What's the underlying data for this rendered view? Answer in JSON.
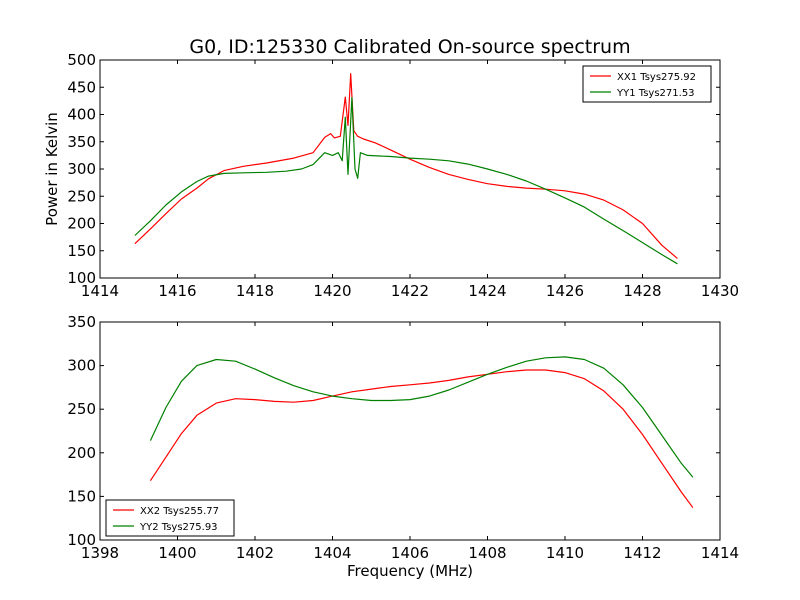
{
  "title": "G0, ID:125330 Calibrated On-source spectrum",
  "colors": {
    "xx": "#ff0000",
    "yy": "#008000"
  },
  "chart_data": [
    {
      "type": "line",
      "xlabel": "",
      "ylabel": "Power in Kelvin",
      "xlim": [
        1414,
        1430
      ],
      "ylim": [
        100,
        500
      ],
      "xticks": [
        1414,
        1416,
        1418,
        1420,
        1422,
        1424,
        1426,
        1428,
        1430
      ],
      "yticks": [
        100,
        150,
        200,
        250,
        300,
        350,
        400,
        450,
        500
      ],
      "legend_position": "top-right",
      "series": [
        {
          "name": "XX1 Tsys275.92",
          "color": "#ff0000",
          "points": [
            [
              1414.9,
              163
            ],
            [
              1415.3,
              190
            ],
            [
              1415.7,
              218
            ],
            [
              1416.1,
              245
            ],
            [
              1416.5,
              265
            ],
            [
              1416.8,
              282
            ],
            [
              1417.2,
              297
            ],
            [
              1417.7,
              305
            ],
            [
              1418.3,
              311
            ],
            [
              1419.0,
              320
            ],
            [
              1419.5,
              330
            ],
            [
              1419.8,
              358
            ],
            [
              1419.95,
              365
            ],
            [
              1420.05,
              357
            ],
            [
              1420.2,
              360
            ],
            [
              1420.33,
              432
            ],
            [
              1420.4,
              380
            ],
            [
              1420.47,
              475
            ],
            [
              1420.55,
              370
            ],
            [
              1420.65,
              360
            ],
            [
              1420.8,
              355
            ],
            [
              1421.1,
              348
            ],
            [
              1421.5,
              335
            ],
            [
              1422.0,
              318
            ],
            [
              1422.5,
              303
            ],
            [
              1423.0,
              290
            ],
            [
              1423.5,
              281
            ],
            [
              1424.0,
              273
            ],
            [
              1424.5,
              268
            ],
            [
              1425.0,
              265
            ],
            [
              1425.5,
              263
            ],
            [
              1426.0,
              260
            ],
            [
              1426.5,
              254
            ],
            [
              1427.0,
              243
            ],
            [
              1427.5,
              225
            ],
            [
              1428.0,
              200
            ],
            [
              1428.5,
              160
            ],
            [
              1428.9,
              136
            ]
          ]
        },
        {
          "name": "YY1 Tsys271.53",
          "color": "#008000",
          "points": [
            [
              1414.9,
              178
            ],
            [
              1415.3,
              205
            ],
            [
              1415.7,
              234
            ],
            [
              1416.1,
              258
            ],
            [
              1416.5,
              277
            ],
            [
              1416.8,
              287
            ],
            [
              1417.2,
              292
            ],
            [
              1417.7,
              293
            ],
            [
              1418.3,
              294
            ],
            [
              1418.8,
              296
            ],
            [
              1419.2,
              300
            ],
            [
              1419.5,
              308
            ],
            [
              1419.8,
              330
            ],
            [
              1420.0,
              325
            ],
            [
              1420.15,
              330
            ],
            [
              1420.25,
              315
            ],
            [
              1420.33,
              395
            ],
            [
              1420.4,
              290
            ],
            [
              1420.5,
              431
            ],
            [
              1420.58,
              300
            ],
            [
              1420.65,
              283
            ],
            [
              1420.72,
              330
            ],
            [
              1420.9,
              325
            ],
            [
              1421.5,
              323
            ],
            [
              1422.0,
              320
            ],
            [
              1422.5,
              318
            ],
            [
              1423.0,
              315
            ],
            [
              1423.5,
              309
            ],
            [
              1424.0,
              300
            ],
            [
              1424.5,
              290
            ],
            [
              1425.0,
              278
            ],
            [
              1425.5,
              263
            ],
            [
              1426.0,
              247
            ],
            [
              1426.5,
              230
            ],
            [
              1427.0,
              208
            ],
            [
              1427.5,
              187
            ],
            [
              1428.0,
              165
            ],
            [
              1428.5,
              143
            ],
            [
              1428.9,
              126
            ]
          ]
        }
      ]
    },
    {
      "type": "line",
      "xlabel": "Frequency (MHz)",
      "ylabel": "",
      "xlim": [
        1398,
        1414
      ],
      "ylim": [
        100,
        350
      ],
      "xticks": [
        1398,
        1400,
        1402,
        1404,
        1406,
        1408,
        1410,
        1412,
        1414
      ],
      "yticks": [
        100,
        150,
        200,
        250,
        300,
        350
      ],
      "legend_position": "bottom-left",
      "series": [
        {
          "name": "XX2 Tsys255.77",
          "color": "#ff0000",
          "points": [
            [
              1399.3,
              168
            ],
            [
              1399.7,
              195
            ],
            [
              1400.1,
              222
            ],
            [
              1400.5,
              243
            ],
            [
              1401.0,
              257
            ],
            [
              1401.5,
              262
            ],
            [
              1402.0,
              261
            ],
            [
              1402.5,
              259
            ],
            [
              1403.0,
              258
            ],
            [
              1403.5,
              260
            ],
            [
              1404.0,
              265
            ],
            [
              1404.5,
              270
            ],
            [
              1405.0,
              273
            ],
            [
              1405.5,
              276
            ],
            [
              1406.0,
              278
            ],
            [
              1406.5,
              280
            ],
            [
              1407.0,
              283
            ],
            [
              1407.5,
              287
            ],
            [
              1408.0,
              290
            ],
            [
              1408.5,
              293
            ],
            [
              1409.0,
              295
            ],
            [
              1409.5,
              295
            ],
            [
              1410.0,
              292
            ],
            [
              1410.5,
              285
            ],
            [
              1411.0,
              271
            ],
            [
              1411.5,
              250
            ],
            [
              1412.0,
              221
            ],
            [
              1412.5,
              188
            ],
            [
              1413.0,
              155
            ],
            [
              1413.3,
              137
            ]
          ]
        },
        {
          "name": "YY2 Tsys275.93",
          "color": "#008000",
          "points": [
            [
              1399.3,
              214
            ],
            [
              1399.7,
              252
            ],
            [
              1400.1,
              282
            ],
            [
              1400.5,
              300
            ],
            [
              1401.0,
              307
            ],
            [
              1401.5,
              305
            ],
            [
              1402.0,
              296
            ],
            [
              1402.5,
              286
            ],
            [
              1403.0,
              277
            ],
            [
              1403.5,
              270
            ],
            [
              1404.0,
              265
            ],
            [
              1404.5,
              262
            ],
            [
              1405.0,
              260
            ],
            [
              1405.5,
              260
            ],
            [
              1406.0,
              261
            ],
            [
              1406.5,
              265
            ],
            [
              1407.0,
              272
            ],
            [
              1407.5,
              281
            ],
            [
              1408.0,
              290
            ],
            [
              1408.5,
              298
            ],
            [
              1409.0,
              305
            ],
            [
              1409.5,
              309
            ],
            [
              1410.0,
              310
            ],
            [
              1410.5,
              307
            ],
            [
              1411.0,
              297
            ],
            [
              1411.5,
              278
            ],
            [
              1412.0,
              252
            ],
            [
              1412.5,
              220
            ],
            [
              1413.0,
              188
            ],
            [
              1413.3,
              172
            ]
          ]
        }
      ]
    }
  ]
}
